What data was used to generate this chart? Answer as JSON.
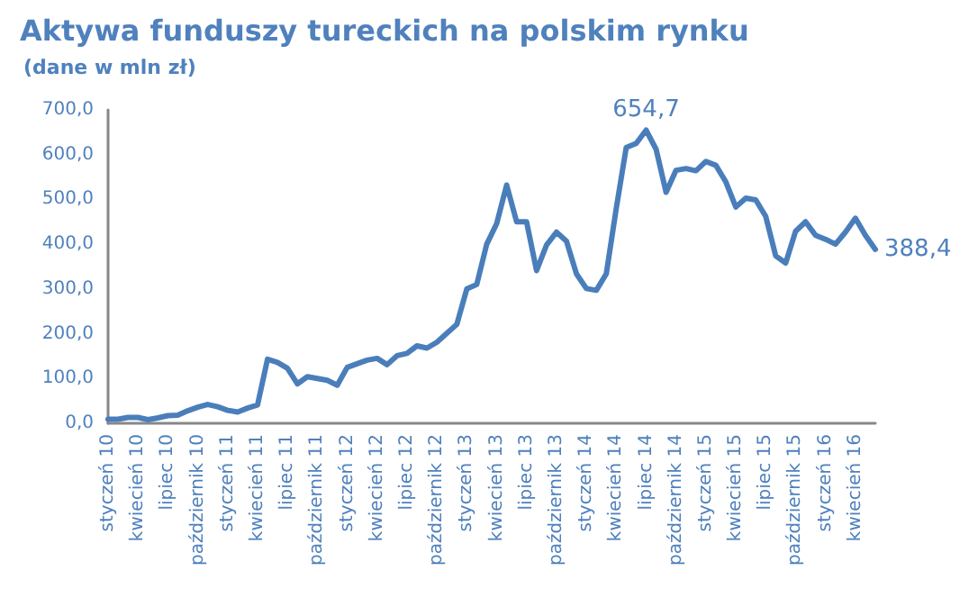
{
  "chart_data": {
    "type": "line",
    "title": "Aktywa funduszy tureckich na polskim rynku",
    "subtitle": "(dane w mln zł)",
    "categories": [
      "styczeń 10",
      null,
      null,
      "kwiecień 10",
      null,
      null,
      "lipiec 10",
      null,
      null,
      "październik 10",
      null,
      null,
      "styczeń 11",
      null,
      null,
      "kwiecień 11",
      null,
      null,
      "lipiec 11",
      null,
      null,
      "październik 11",
      null,
      null,
      "styczeń 12",
      null,
      null,
      "kwiecień 12",
      null,
      null,
      "lipiec 12",
      null,
      null,
      "październik 12",
      null,
      null,
      "styczeń 13",
      null,
      null,
      "kwiecień 13",
      null,
      null,
      "lipiec 13",
      null,
      null,
      "październik 13",
      null,
      null,
      "styczeń 14",
      null,
      null,
      "kwiecień 14",
      null,
      null,
      "lipiec 14",
      null,
      null,
      "październik 14",
      null,
      null,
      "styczeń 15",
      null,
      null,
      "kwiecień 15",
      null,
      null,
      "lipiec 15",
      null,
      null,
      "październik 15",
      null,
      null,
      "styczeń 16",
      null,
      null,
      "kwiecień 16",
      null,
      null
    ],
    "series": [
      {
        "color": "#4a7ebb",
        "values": [
          9,
          9,
          13,
          13,
          8,
          12,
          17,
          18,
          28,
          36,
          42,
          37,
          29,
          25,
          34,
          41,
          143,
          136,
          123,
          88,
          104,
          100,
          96,
          85,
          125,
          133,
          141,
          145,
          131,
          151,
          156,
          173,
          168,
          181,
          201,
          221,
          300,
          310,
          400,
          446,
          532,
          450,
          450,
          341,
          398,
          427,
          407,
          334,
          301,
          297,
          334,
          480,
          616,
          625,
          654.7,
          612,
          516,
          565,
          569,
          564,
          585,
          576,
          539,
          483,
          503,
          499,
          462,
          374,
          358,
          429,
          450,
          420,
          411,
          400,
          427,
          458,
          420,
          388.4
        ],
        "value_labels": [
          null,
          null,
          null,
          null,
          null,
          null,
          null,
          null,
          null,
          null,
          null,
          null,
          null,
          null,
          null,
          null,
          null,
          null,
          null,
          null,
          null,
          null,
          null,
          null,
          null,
          null,
          null,
          null,
          null,
          null,
          null,
          null,
          null,
          null,
          null,
          null,
          null,
          null,
          null,
          null,
          null,
          null,
          null,
          null,
          null,
          null,
          null,
          null,
          null,
          null,
          null,
          null,
          null,
          null,
          "654,7",
          null,
          null,
          null,
          null,
          null,
          null,
          null,
          null,
          null,
          null,
          null,
          null,
          null,
          null,
          null,
          null,
          null,
          null,
          null,
          null,
          null,
          null,
          "388,4"
        ]
      }
    ],
    "ylim": [
      0,
      700
    ],
    "yticks": [
      {
        "value": 0,
        "label": "0,0"
      },
      {
        "value": 100,
        "label": "100,0"
      },
      {
        "value": 200,
        "label": "200,0"
      },
      {
        "value": 300,
        "label": "300,0"
      },
      {
        "value": 400,
        "label": "400,0"
      },
      {
        "value": 500,
        "label": "500,0"
      },
      {
        "value": 600,
        "label": "600,0"
      },
      {
        "value": 700,
        "label": "700,0"
      }
    ],
    "grid": false,
    "marker": "none",
    "line_style": "solid"
  }
}
